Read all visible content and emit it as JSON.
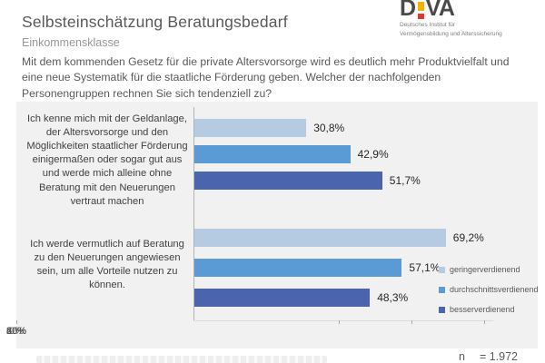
{
  "header": {
    "title": "Selbsteinschätzung Beratungsbedarf",
    "subtitle": "Einkommensklasse"
  },
  "logo": {
    "text_left": "D",
    "text_right": "VA",
    "caption_line1": "Deutsches Institut für",
    "caption_line2": "Vermögensbildung und Alterssicherung",
    "mark_top_color": "#f2b200",
    "mark_dot_color": "#e03a2f"
  },
  "intro": "Mit dem kommenden Gesetz für die private Altersvorsorge wird es deutlich mehr Produktvielfalt und eine neue Systematik für die staatliche Förderung geben. Welcher der nachfolgenden Personengruppen rechnen Sie sich tendenziell zu?",
  "chart_data": {
    "type": "bar",
    "orientation": "horizontal",
    "categories": [
      "Ich kenne mich mit der Geldanlage, der Altersvorsorge und den Möglichkeiten staatlicher Förderung einigermaßen oder sogar gut aus und werde mich alleine ohne Beratung mit den Neuerungen vertraut machen",
      "Ich werde vermutlich auf Beratung zu den Neuerungen angewiesen sein, um alle Vorteile nutzen zu können."
    ],
    "series": [
      {
        "name": "geringerverdienend",
        "color": "#b5cbe2",
        "values": [
          30.8,
          69.2
        ],
        "labels": [
          "30,8%",
          "69,2%"
        ]
      },
      {
        "name": "durchschnittsverdienend",
        "color": "#5b9bd5",
        "values": [
          42.9,
          57.1
        ],
        "labels": [
          "42,9%",
          "57,1%"
        ]
      },
      {
        "name": "besserverdienend",
        "color": "#4a64ad",
        "values": [
          51.7,
          48.3
        ],
        "labels": [
          "51,7%",
          "48,3%"
        ]
      }
    ],
    "x_ticks": [
      "0%",
      "20%",
      "40%",
      "60%",
      "80%"
    ],
    "xlim": [
      0,
      80
    ],
    "xlabel": "",
    "ylabel": "",
    "grid": false,
    "legend_position": "right",
    "value_label_format": "german-decimal-percent",
    "panel_background": "#f1f1f2"
  },
  "footer": {
    "n_label": "n",
    "n_value": "= 1.972"
  }
}
